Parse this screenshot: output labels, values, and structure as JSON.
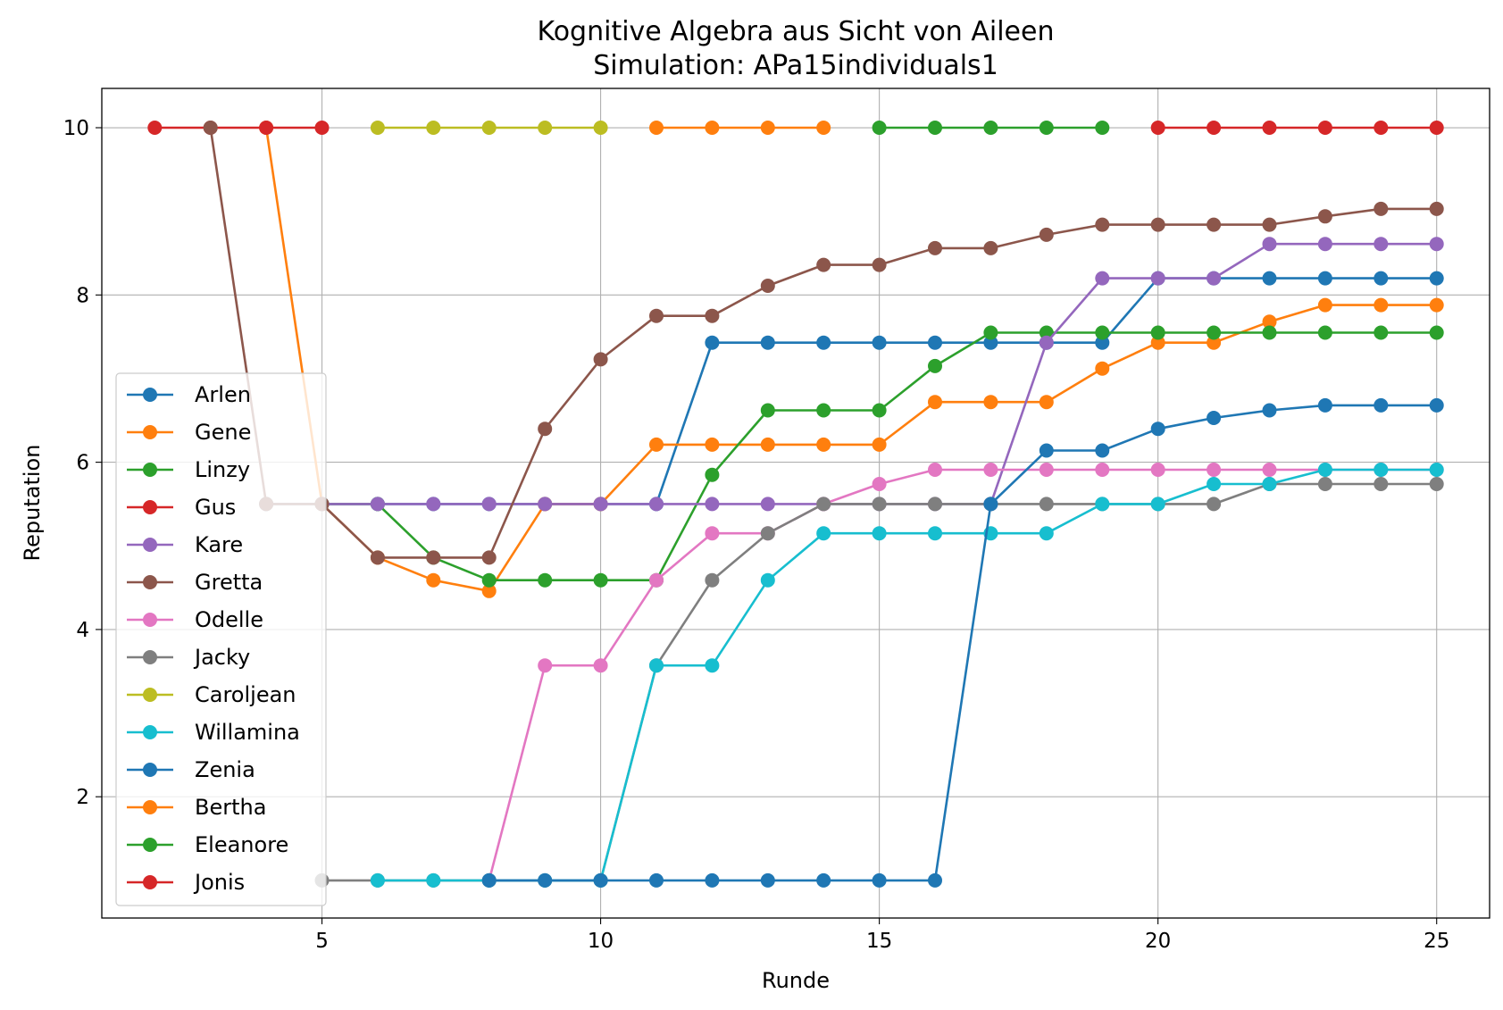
{
  "chart_data": {
    "type": "line",
    "title": "Kognitive Algebra aus Sicht von Aileen",
    "subtitle": "Simulation: APa15individuals1",
    "xlabel": "Runde",
    "ylabel": "Reputation",
    "xlim": [
      1.05,
      25.95
    ],
    "ylim": [
      0.55,
      10.47
    ],
    "xticks": [
      5,
      10,
      15,
      20,
      25
    ],
    "yticks": [
      2,
      4,
      6,
      8,
      10
    ],
    "grid": true,
    "legend_position": "lower left",
    "series": [
      {
        "name": "Arlen",
        "color": "#1f77b4",
        "x": [
          4,
          5,
          6,
          7,
          8,
          9,
          10,
          11,
          12,
          13,
          14,
          15,
          16,
          17,
          18,
          19,
          20,
          21,
          22,
          23,
          24,
          25
        ],
        "y": [
          5.5,
          5.5,
          5.5,
          5.5,
          5.5,
          5.5,
          5.5,
          5.5,
          7.43,
          7.43,
          7.43,
          7.43,
          7.43,
          7.43,
          7.43,
          7.43,
          8.2,
          8.2,
          8.2,
          8.2,
          8.2,
          8.2
        ]
      },
      {
        "name": "Gene",
        "color": "#ff7f0e",
        "x": [
          4,
          5,
          6,
          7,
          8,
          9,
          10,
          11,
          12,
          13,
          14,
          15,
          16,
          17,
          18,
          19,
          20,
          21,
          22,
          23,
          24,
          25
        ],
        "y": [
          10,
          5.5,
          4.86,
          4.59,
          4.46,
          5.5,
          5.5,
          6.21,
          6.21,
          6.21,
          6.21,
          6.21,
          6.72,
          6.72,
          6.72,
          7.12,
          7.43,
          7.43,
          7.68,
          7.88,
          7.88,
          7.88
        ]
      },
      {
        "name": "Linzy",
        "color": "#2ca02c",
        "x": [
          5,
          6,
          7,
          8,
          9,
          10,
          11,
          12,
          13,
          14,
          15,
          16,
          17,
          18,
          19,
          20,
          21,
          22,
          23,
          24,
          25
        ],
        "y": [
          5.5,
          5.5,
          4.86,
          4.59,
          4.59,
          4.59,
          4.59,
          5.85,
          6.62,
          6.62,
          6.62,
          7.15,
          7.55,
          7.55,
          7.55,
          7.55,
          7.55,
          7.55,
          7.55,
          7.55,
          7.55
        ]
      },
      {
        "name": "Gus",
        "color": "#d62728",
        "x": [
          2,
          3,
          4,
          5
        ],
        "y": [
          10,
          10,
          10,
          10
        ]
      },
      {
        "name": "Kare",
        "color": "#9467bd",
        "x": [
          5,
          6,
          7,
          8,
          9,
          10,
          11,
          12,
          13,
          14,
          15,
          16,
          17,
          18,
          19,
          20,
          21,
          22,
          23,
          24,
          25
        ],
        "y": [
          5.5,
          5.5,
          5.5,
          5.5,
          5.5,
          5.5,
          5.5,
          5.5,
          5.5,
          5.5,
          5.5,
          5.5,
          5.5,
          7.43,
          8.2,
          8.2,
          8.2,
          8.61,
          8.61,
          8.61,
          8.61
        ]
      },
      {
        "name": "Gretta",
        "color": "#8c564b",
        "x": [
          3,
          4,
          5,
          6,
          7,
          8,
          9,
          10,
          11,
          12,
          13,
          14,
          15,
          16,
          17,
          18,
          19,
          20,
          21,
          22,
          23,
          24,
          25
        ],
        "y": [
          10,
          5.5,
          5.5,
          4.86,
          4.86,
          4.86,
          6.4,
          7.23,
          7.75,
          7.75,
          8.11,
          8.36,
          8.36,
          8.56,
          8.56,
          8.72,
          8.84,
          8.84,
          8.84,
          8.84,
          8.94,
          9.03,
          9.03
        ]
      },
      {
        "name": "Odelle",
        "color": "#e377c2",
        "x": [
          8,
          9,
          10,
          11,
          12,
          13,
          14,
          15,
          16,
          17,
          18,
          19,
          20,
          21,
          22,
          23,
          24,
          25
        ],
        "y": [
          1,
          3.57,
          3.57,
          4.59,
          5.15,
          5.15,
          5.5,
          5.74,
          5.91,
          5.91,
          5.91,
          5.91,
          5.91,
          5.91,
          5.91,
          5.91,
          5.91,
          5.91
        ]
      },
      {
        "name": "Jacky",
        "color": "#7f7f7f",
        "x": [
          5,
          6,
          7,
          8,
          9,
          10,
          11,
          12,
          13,
          14,
          15,
          16,
          17,
          18,
          19,
          20,
          21,
          22,
          23,
          24,
          25
        ],
        "y": [
          1,
          1,
          1,
          1,
          1,
          1,
          3.57,
          4.59,
          5.15,
          5.5,
          5.5,
          5.5,
          5.5,
          5.5,
          5.5,
          5.5,
          5.5,
          5.74,
          5.74,
          5.74,
          5.74
        ]
      },
      {
        "name": "Caroljean",
        "color": "#bcbd22",
        "x": [
          6,
          7,
          8,
          9,
          10
        ],
        "y": [
          10,
          10,
          10,
          10,
          10
        ]
      },
      {
        "name": "Willamina",
        "color": "#17becf",
        "x": [
          6,
          7,
          8,
          9,
          10,
          11,
          12,
          13,
          14,
          15,
          16,
          17,
          18,
          19,
          20,
          21,
          22,
          23,
          24,
          25
        ],
        "y": [
          1,
          1,
          1,
          1,
          1,
          3.57,
          3.57,
          4.59,
          5.15,
          5.15,
          5.15,
          5.15,
          5.15,
          5.5,
          5.5,
          5.74,
          5.74,
          5.91,
          5.91,
          5.91
        ]
      },
      {
        "name": "Zenia",
        "color": "#1f77b4",
        "x": [
          8,
          9,
          10,
          11,
          12,
          13,
          14,
          15,
          16,
          17,
          18,
          19,
          20,
          21,
          22,
          23,
          24,
          25
        ],
        "y": [
          1,
          1,
          1,
          1,
          1,
          1,
          1,
          1,
          1,
          5.5,
          6.14,
          6.14,
          6.4,
          6.53,
          6.62,
          6.68,
          6.68,
          6.68
        ]
      },
      {
        "name": "Bertha",
        "color": "#ff7f0e",
        "x": [
          11,
          12,
          13,
          14
        ],
        "y": [
          10,
          10,
          10,
          10
        ]
      },
      {
        "name": "Eleanore",
        "color": "#2ca02c",
        "x": [
          15,
          16,
          17,
          18,
          19
        ],
        "y": [
          10,
          10,
          10,
          10,
          10
        ]
      },
      {
        "name": "Jonis",
        "color": "#d62728",
        "x": [
          20,
          21,
          22,
          23,
          24,
          25
        ],
        "y": [
          10,
          10,
          10,
          10,
          10,
          10
        ]
      }
    ]
  }
}
